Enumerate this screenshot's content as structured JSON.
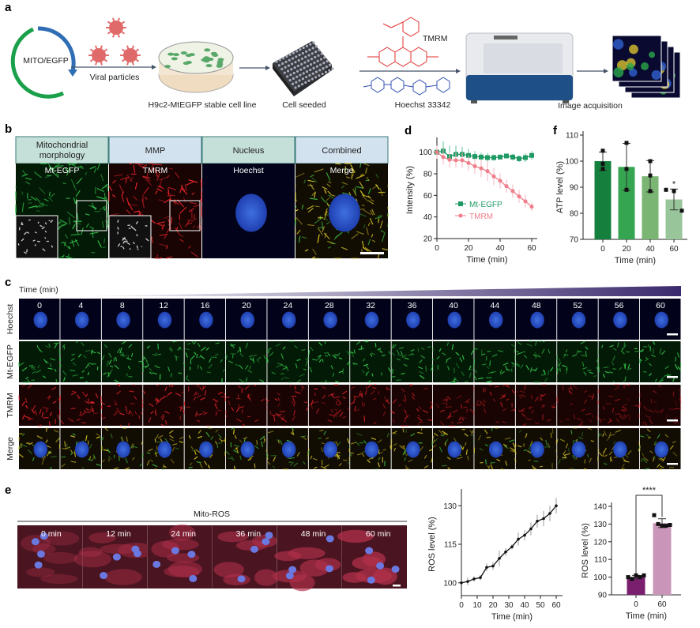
{
  "panel_labels": {
    "a": "a",
    "b": "b",
    "c": "c",
    "d": "d",
    "e": "e",
    "f": "f"
  },
  "panel_a": {
    "plasmid": "MITO/EGFP",
    "viral": "Viral particles",
    "cell_line": "H9c2-MtEGFP stable cell line",
    "seeded": "Cell seeded",
    "tmrm": "TMRM",
    "hoechst": "Hoechst 33342",
    "acquisition": "Image acquisition"
  },
  "panel_b": {
    "columns": [
      {
        "header1": "Mitochondrial",
        "header2": "morphology",
        "label": "Mt-EGFP"
      },
      {
        "header1": "MMP",
        "header2": "",
        "label": "TMRM"
      },
      {
        "header1": "Nucleus",
        "header2": "",
        "label": "Hoechst"
      },
      {
        "header1": "Combined",
        "header2": "",
        "label": "Merge"
      }
    ]
  },
  "panel_c": {
    "time_label": "Time (min)",
    "times": [
      "0",
      "4",
      "8",
      "12",
      "16",
      "20",
      "24",
      "28",
      "32",
      "36",
      "40",
      "44",
      "48",
      "52",
      "56",
      "60"
    ],
    "rows": [
      "Hoechst",
      "Mt-EGFP",
      "TMRM",
      "Merge"
    ]
  },
  "panel_e": {
    "title": "Mito-ROS",
    "frames": [
      "0 min",
      "12 min",
      "24 min",
      "36 min",
      "48 min",
      "60 min"
    ]
  },
  "chart_data": [
    {
      "id": "d",
      "type": "line",
      "xlabel": "Time (min)",
      "ylabel": "Intensity (%)",
      "xlim": [
        0,
        60
      ],
      "ylim": [
        20,
        110
      ],
      "xticks": [
        0,
        20,
        40,
        60
      ],
      "yticks": [
        20,
        40,
        60,
        80,
        100
      ],
      "x": [
        0,
        4,
        8,
        12,
        16,
        20,
        24,
        28,
        32,
        36,
        40,
        44,
        48,
        52,
        56,
        60
      ],
      "legend_position": "center",
      "series": [
        {
          "name": "Mt-EGFP",
          "color": "#1f9a64",
          "marker": "square",
          "values": [
            100,
            101,
            96,
            98,
            98,
            97,
            96,
            95.5,
            95,
            95,
            95.5,
            96.5,
            95.5,
            94,
            95,
            97
          ],
          "errors": [
            4,
            9,
            10,
            8,
            7,
            6,
            5,
            4,
            4,
            3,
            2,
            2,
            3,
            3,
            4,
            4
          ]
        },
        {
          "name": "TMRM",
          "color": "#ef7d8a",
          "marker": "circle",
          "values": [
            100,
            95.5,
            93,
            92.5,
            92.5,
            90,
            87,
            85,
            82.5,
            77.5,
            73.5,
            68.5,
            64,
            59,
            54.5,
            49.5
          ],
          "errors": [
            6,
            7,
            7,
            7,
            7,
            7,
            7,
            8,
            9,
            8,
            7,
            6,
            6,
            6,
            6,
            4
          ]
        }
      ]
    },
    {
      "id": "f",
      "type": "bar",
      "xlabel": "Time (min)",
      "ylabel": "ATP level (%)",
      "categories": [
        "0",
        "20",
        "40",
        "60"
      ],
      "values": [
        100,
        97.8,
        94.2,
        85.3
      ],
      "errors": [
        3.5,
        9,
        6,
        4
      ],
      "points": [
        [
          104,
          99,
          97
        ],
        [
          107,
          97,
          89
        ],
        [
          100,
          94.5,
          88.5
        ],
        [
          89,
          88.5,
          81
        ]
      ],
      "colors": [
        "#15803d",
        "#35a552",
        "#7ab573",
        "#98c59a"
      ],
      "ylim": [
        70,
        110
      ],
      "yticks": [
        70,
        80,
        90,
        100,
        110
      ],
      "annotations": [
        "",
        "",
        "",
        "*"
      ]
    },
    {
      "id": "e_line",
      "type": "line",
      "xlabel": "Time (min)",
      "ylabel": "ROS level (%)",
      "xlim": [
        0,
        60
      ],
      "ylim": [
        95,
        135
      ],
      "xticks": [
        0,
        10,
        20,
        30,
        40,
        50,
        60
      ],
      "yticks": [
        100,
        115,
        130
      ],
      "x": [
        0,
        4,
        8,
        12,
        16,
        20,
        24,
        28,
        32,
        36,
        40,
        44,
        48,
        52,
        56,
        60
      ],
      "series": [
        {
          "name": "ROS",
          "color": "#111111",
          "values": [
            100,
            100.5,
            101.5,
            102,
            106,
            106.5,
            109.5,
            112,
            114,
            117,
            118.5,
            121,
            124,
            125,
            127,
            130
          ],
          "errors": [
            0.5,
            1.5,
            1,
            1,
            1.5,
            1.5,
            3,
            1.5,
            1,
            2.5,
            2,
            2.5,
            2.5,
            3,
            3,
            3
          ]
        }
      ]
    },
    {
      "id": "e_bar",
      "type": "bar",
      "xlabel": "Time (min)",
      "ylabel": "ROS level (%)",
      "categories": [
        "0",
        "60"
      ],
      "values": [
        100,
        130.5
      ],
      "errors": [
        1,
        2.5
      ],
      "points": [
        [
          100,
          99,
          101,
          100,
          101
        ],
        [
          135,
          130,
          129,
          129,
          129.5
        ]
      ],
      "colors": [
        "#7a1f6e",
        "#c996b9"
      ],
      "ylim": [
        90,
        140
      ],
      "yticks": [
        90,
        100,
        110,
        120,
        130,
        140
      ],
      "significance": "****"
    }
  ]
}
